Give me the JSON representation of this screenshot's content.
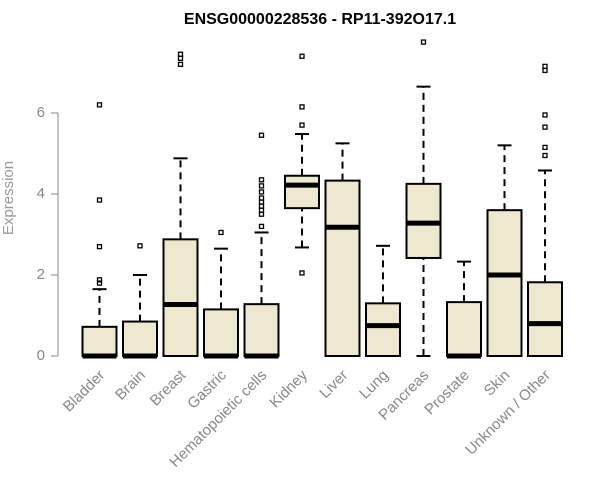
{
  "chart_data": {
    "type": "boxplot",
    "title": "ENSG00000228536 - RP11-392O17.1",
    "xlabel": "",
    "ylabel": "Expression",
    "ylim": [
      0,
      7.9
    ],
    "yticks": [
      0,
      2,
      4,
      6
    ],
    "grid": false,
    "legend": "none",
    "box_fill": "#efe8d0",
    "categories": [
      "Bladder",
      "Brain",
      "Breast",
      "Gastric",
      "Hematopoietic cells",
      "Kidney",
      "Liver",
      "Lung",
      "Pancreas",
      "Prostate",
      "Skin",
      "Unknown / Other"
    ],
    "boxes": [
      {
        "min": 0,
        "q1": 0,
        "median": 0,
        "q3": 0.72,
        "max": 1.65,
        "outliers": [
          1.8,
          1.88,
          2.7,
          3.85,
          6.2
        ]
      },
      {
        "min": 0,
        "q1": 0,
        "median": 0,
        "q3": 0.85,
        "max": 2.0,
        "outliers": [
          2.72
        ]
      },
      {
        "min": 0,
        "q1": 0,
        "median": 1.27,
        "q3": 2.88,
        "max": 4.88,
        "outliers": [
          7.2,
          7.35,
          7.45
        ]
      },
      {
        "min": 0,
        "q1": 0,
        "median": 0,
        "q3": 1.15,
        "max": 2.65,
        "outliers": [
          3.05
        ]
      },
      {
        "min": 0,
        "q1": 0,
        "median": 0,
        "q3": 1.28,
        "max": 3.05,
        "outliers": [
          3.2,
          3.5,
          3.6,
          3.7,
          3.8,
          3.9,
          4.05,
          4.2,
          4.35,
          5.45
        ]
      },
      {
        "min": 2.68,
        "q1": 3.65,
        "median": 4.22,
        "q3": 4.45,
        "max": 5.48,
        "outliers": [
          2.05,
          5.7,
          6.15,
          7.4
        ]
      },
      {
        "min": 0,
        "q1": 0,
        "median": 3.18,
        "q3": 4.33,
        "max": 5.25,
        "outliers": []
      },
      {
        "min": 0,
        "q1": 0,
        "median": 0.75,
        "q3": 1.3,
        "max": 2.72,
        "outliers": []
      },
      {
        "min": 0,
        "q1": 2.42,
        "median": 3.28,
        "q3": 4.25,
        "max": 6.65,
        "outliers": [
          7.75
        ]
      },
      {
        "min": 0,
        "q1": 0,
        "median": 0,
        "q3": 1.33,
        "max": 2.33,
        "outliers": []
      },
      {
        "min": 0,
        "q1": 0,
        "median": 2.0,
        "q3": 3.6,
        "max": 5.2,
        "outliers": []
      },
      {
        "min": 0,
        "q1": 0,
        "median": 0.8,
        "q3": 1.82,
        "max": 4.58,
        "outliers": [
          4.95,
          5.15,
          5.65,
          5.95,
          7.05,
          7.15
        ]
      }
    ]
  }
}
